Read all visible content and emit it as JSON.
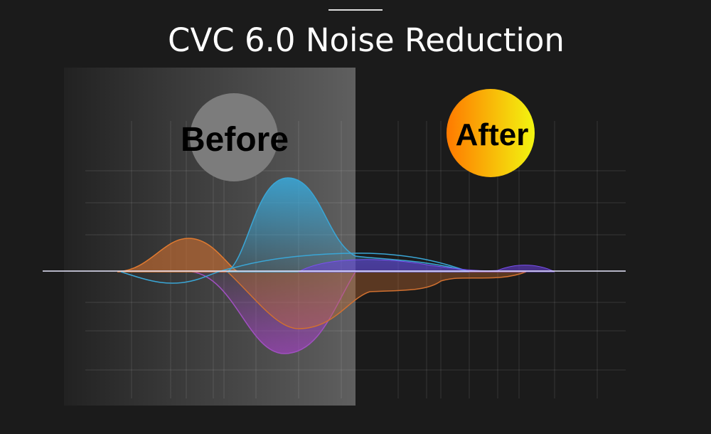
{
  "header": {
    "title": "CVC 6.0 Noise Reduction"
  },
  "labels": {
    "before": "Before",
    "after": "After"
  }
}
